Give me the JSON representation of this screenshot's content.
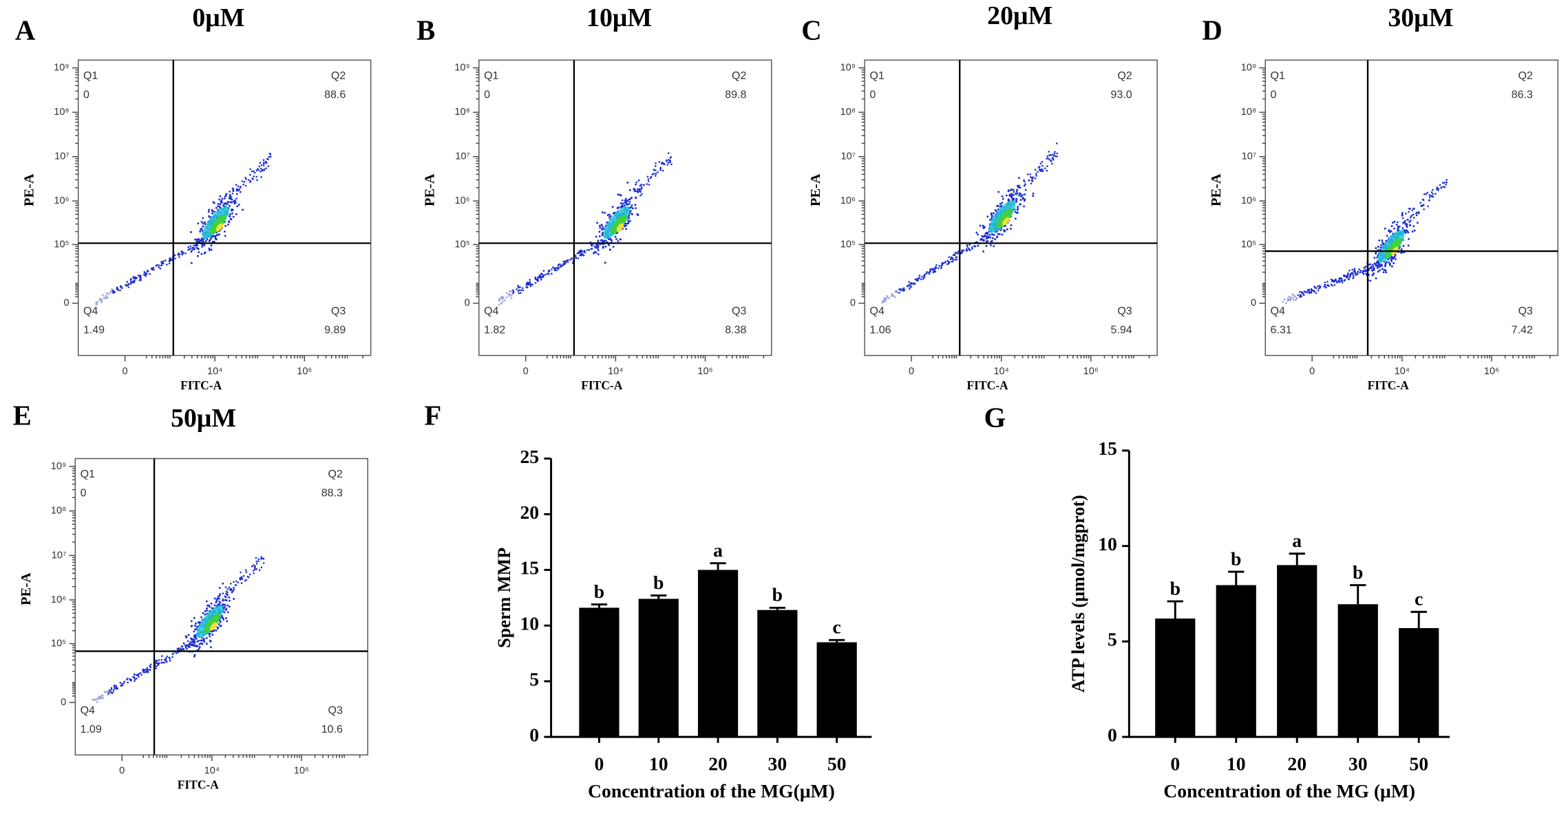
{
  "chart_data": [
    {
      "type": "flow",
      "panel": "A",
      "title": "0μM",
      "xlabel": "FITC-A",
      "ylabel": "PE-A",
      "quadrant_names": [
        "Q1",
        "Q2",
        "Q3",
        "Q4"
      ],
      "values": [
        0,
        88.6,
        9.89,
        1.49
      ],
      "log_scale": true,
      "xlim": [
        -1000,
        30000000
      ],
      "ylim": [
        -70000,
        1500000000
      ],
      "xticks": [
        0,
        {
          "value": 10000,
          "label": "10⁴"
        },
        {
          "value": 1000000,
          "label": "10⁶"
        }
      ],
      "yticks": [
        0,
        {
          "value": 100000,
          "label": "10⁵"
        },
        {
          "value": 1000000,
          "label": "10⁶"
        },
        {
          "value": 10000000,
          "label": "10⁷"
        },
        {
          "value": 100000000,
          "label": "10⁸"
        },
        {
          "value": 1000000000,
          "label": "10⁹"
        }
      ]
    },
    {
      "type": "flow",
      "panel": "B",
      "title": "10μM",
      "xlabel": "FITC-A",
      "ylabel": "PE-A",
      "quadrant_names": [
        "Q1",
        "Q2",
        "Q3",
        "Q4"
      ],
      "values": [
        0,
        89.8,
        8.38,
        1.82
      ],
      "log_scale": true,
      "xlim": [
        -1000,
        30000000
      ],
      "ylim": [
        -70000,
        1500000000
      ],
      "xticks": [
        0,
        {
          "value": 10000,
          "label": "10⁴"
        },
        {
          "value": 1000000,
          "label": "10⁶"
        }
      ],
      "yticks": [
        0,
        {
          "value": 100000,
          "label": "10⁵"
        },
        {
          "value": 1000000,
          "label": "10⁶"
        },
        {
          "value": 10000000,
          "label": "10⁷"
        },
        {
          "value": 100000000,
          "label": "10⁸"
        },
        {
          "value": 1000000000,
          "label": "10⁹"
        }
      ]
    },
    {
      "type": "flow",
      "panel": "C",
      "title": "20μM",
      "xlabel": "FITC-A",
      "ylabel": "PE-A",
      "quadrant_names": [
        "Q1",
        "Q2",
        "Q3",
        "Q4"
      ],
      "values": [
        0,
        93,
        5.94,
        1.06
      ],
      "value_labels": [
        "0",
        "93.0",
        "5.94",
        "1.06"
      ],
      "log_scale": true,
      "xlim": [
        -1000,
        30000000
      ],
      "ylim": [
        -70000,
        1500000000
      ],
      "xticks": [
        0,
        {
          "value": 10000,
          "label": "10⁴"
        },
        {
          "value": 1000000,
          "label": "10⁶"
        }
      ],
      "yticks": [
        0,
        {
          "value": 100000,
          "label": "10⁵"
        },
        {
          "value": 1000000,
          "label": "10⁶"
        },
        {
          "value": 10000000,
          "label": "10⁷"
        },
        {
          "value": 100000000,
          "label": "10⁸"
        },
        {
          "value": 1000000000,
          "label": "10⁹"
        }
      ]
    },
    {
      "type": "flow",
      "panel": "D",
      "title": "30μM",
      "xlabel": "FITC-A",
      "ylabel": "PE-A",
      "quadrant_names": [
        "Q1",
        "Q2",
        "Q3",
        "Q4"
      ],
      "values": [
        0,
        86.3,
        7.42,
        6.31
      ],
      "log_scale": true,
      "xlim": [
        -1000,
        30000000
      ],
      "ylim": [
        -70000,
        1500000000
      ],
      "xticks": [
        0,
        {
          "value": 10000,
          "label": "10⁴"
        },
        {
          "value": 1000000,
          "label": "10⁶"
        }
      ],
      "yticks": [
        0,
        {
          "value": 100000,
          "label": "10⁵"
        },
        {
          "value": 1000000,
          "label": "10⁶"
        },
        {
          "value": 10000000,
          "label": "10⁷"
        },
        {
          "value": 100000000,
          "label": "10⁸"
        },
        {
          "value": 1000000000,
          "label": "10⁹"
        }
      ]
    },
    {
      "type": "flow",
      "panel": "E",
      "title": "50μM",
      "xlabel": "FITC-A",
      "ylabel": "PE-A",
      "quadrant_names": [
        "Q1",
        "Q2",
        "Q3",
        "Q4"
      ],
      "values": [
        0,
        88.3,
        10.6,
        1.09
      ],
      "log_scale": true,
      "xlim": [
        -1000,
        30000000
      ],
      "ylim": [
        -70000,
        1500000000
      ],
      "xticks": [
        0,
        {
          "value": 10000,
          "label": "10⁴"
        },
        {
          "value": 1000000,
          "label": "10⁶"
        }
      ],
      "yticks": [
        0,
        {
          "value": 100000,
          "label": "10⁵"
        },
        {
          "value": 1000000,
          "label": "10⁶"
        },
        {
          "value": 10000000,
          "label": "10⁷"
        },
        {
          "value": 100000000,
          "label": "10⁸"
        },
        {
          "value": 1000000000,
          "label": "10⁹"
        }
      ]
    },
    {
      "type": "bar",
      "panel": "F",
      "xlabel": "Concentration of the MG(μM)",
      "ylabel": "Sperm MMP",
      "categories": [
        "0",
        "10",
        "20",
        "30",
        "50"
      ],
      "values": [
        11.6,
        12.4,
        15.0,
        11.4,
        8.5
      ],
      "errors": [
        0.3,
        0.3,
        0.6,
        0.2,
        0.2
      ],
      "annotations": [
        "b",
        "b",
        "a",
        "b",
        "c"
      ],
      "color": "#000000",
      "ylim": [
        0,
        25
      ],
      "yticks": [
        0,
        5,
        10,
        15,
        20,
        25
      ]
    },
    {
      "type": "bar",
      "panel": "G",
      "xlabel": "Concentration of the MG (μM)",
      "ylabel": "ATP levels (μmol/mgprot)",
      "categories": [
        "0",
        "10",
        "20",
        "30",
        "50"
      ],
      "values": [
        6.2,
        7.95,
        9.0,
        6.95,
        5.7
      ],
      "errors": [
        0.9,
        0.7,
        0.6,
        1.0,
        0.85
      ],
      "annotations": [
        "b",
        "b",
        "a",
        "b",
        "c"
      ],
      "color": "#000000",
      "ylim": [
        0,
        15
      ],
      "yticks": [
        0,
        5,
        10,
        15
      ]
    }
  ]
}
